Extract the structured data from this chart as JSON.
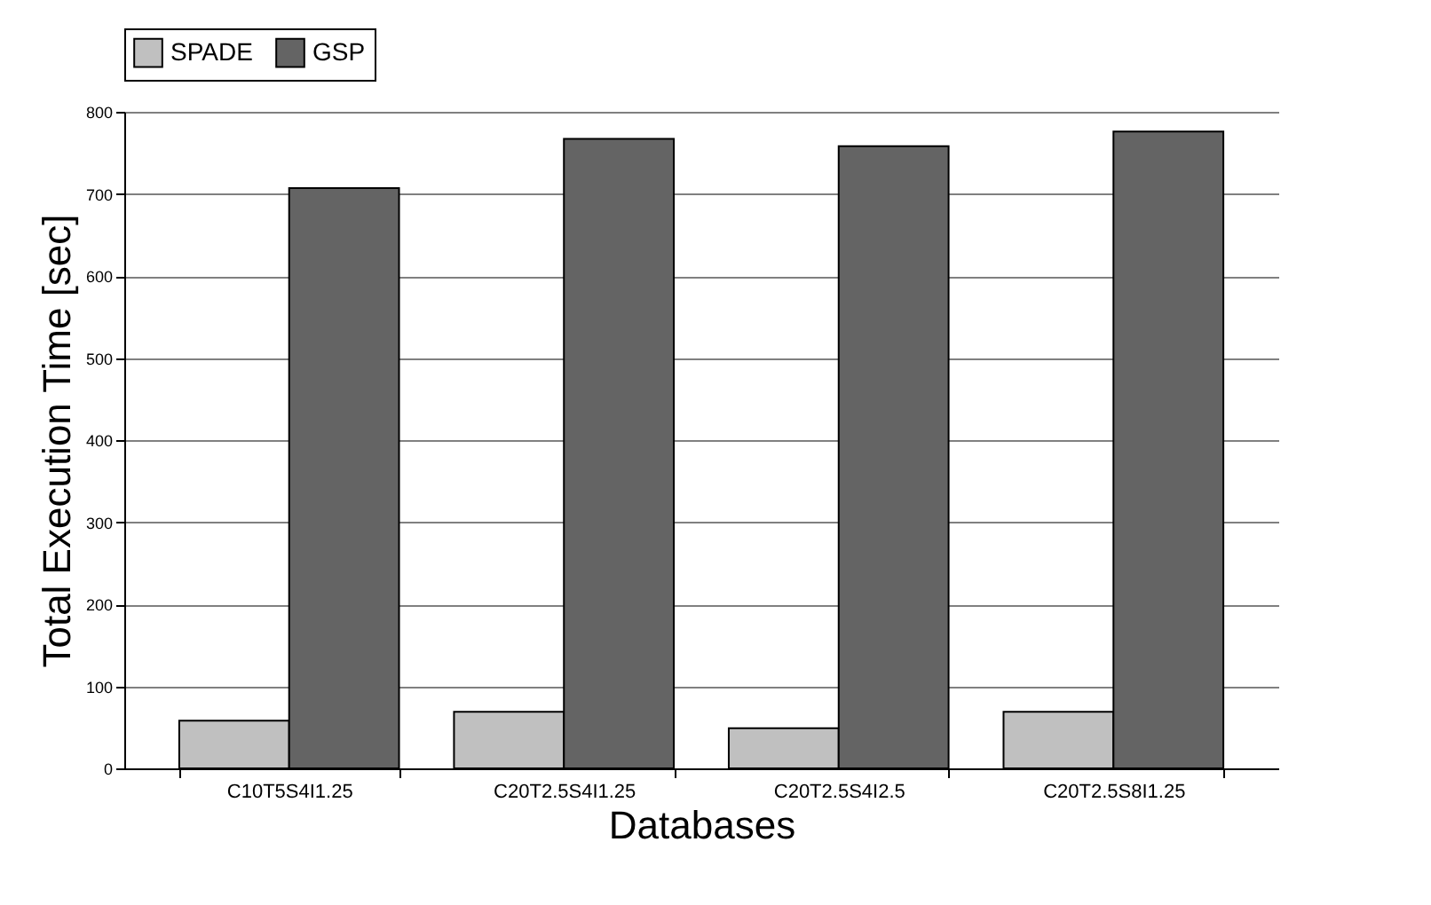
{
  "chart_data": {
    "type": "bar",
    "xlabel": "Databases",
    "ylabel": "Total Execution Time [sec]",
    "categories": [
      "C10T5S4I1.25",
      "C20T2.5S4I1.25",
      "C20T2.5S4I2.5",
      "C20T2.5S8I1.25"
    ],
    "series": [
      {
        "name": "SPADE",
        "color": "#c0c0c0",
        "values": [
          58,
          69,
          49,
          69
        ]
      },
      {
        "name": "GSP",
        "color": "#646464",
        "values": [
          707,
          767,
          758,
          776
        ]
      }
    ],
    "ylim": [
      0,
      800
    ],
    "yticks": [
      0,
      100,
      200,
      300,
      400,
      500,
      600,
      700,
      800
    ],
    "grid": "y",
    "legend": "top"
  }
}
